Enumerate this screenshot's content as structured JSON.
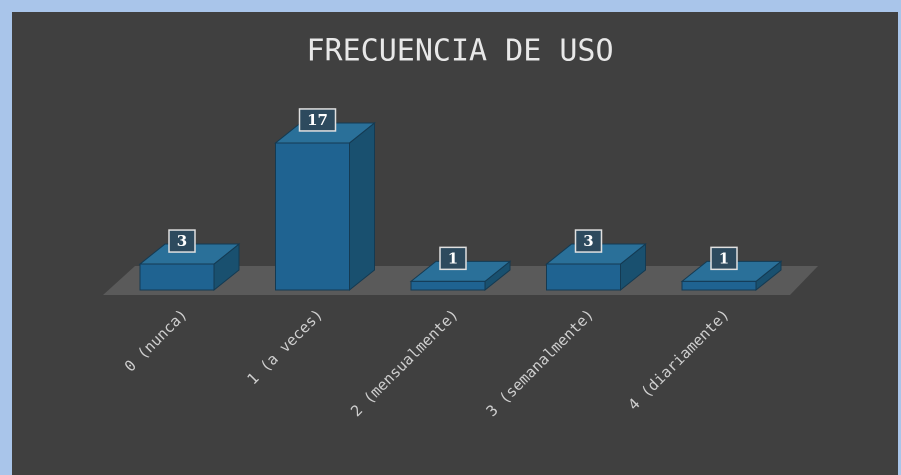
{
  "chart_data": {
    "type": "bar3d",
    "title": "FRECUENCIA DE USO",
    "categories": [
      "0 (nunca)",
      "1 (a veces)",
      "2 (mensualmente)",
      "3 (semanalmente)",
      "4 (diariamente)"
    ],
    "values": [
      3,
      17,
      1,
      3,
      1
    ],
    "color": "#1f6391"
  }
}
